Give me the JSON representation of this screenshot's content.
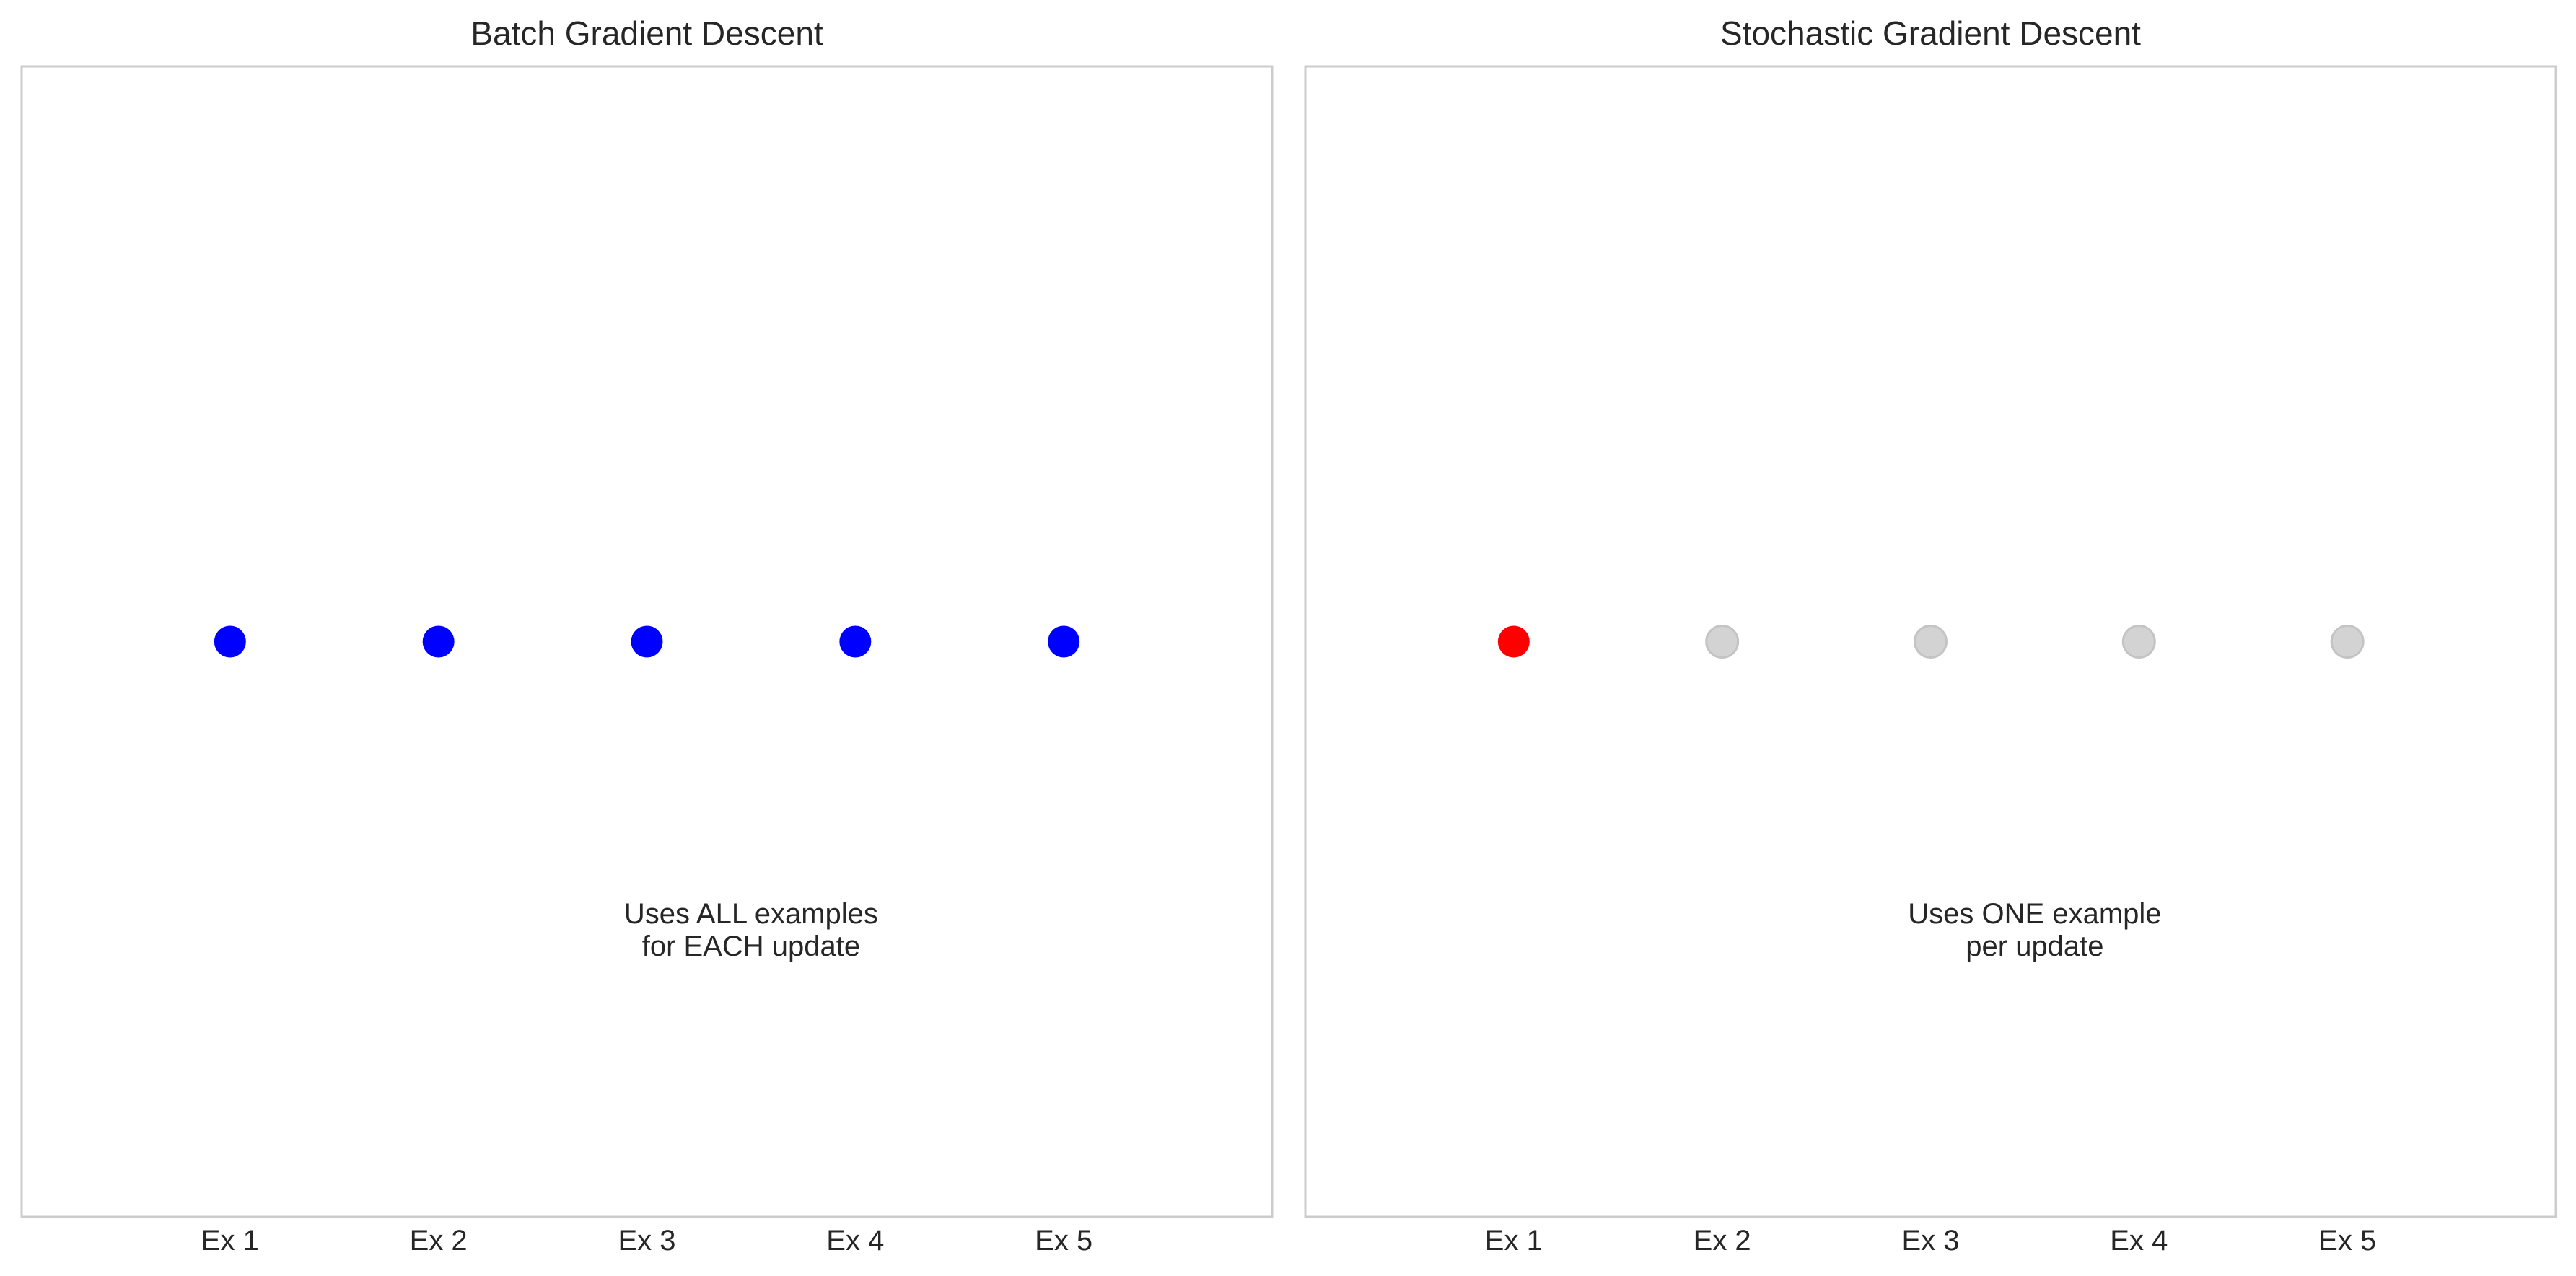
{
  "chart_data": [
    {
      "type": "scatter",
      "title": "Batch Gradient Descent",
      "categories": [
        "Ex 1",
        "Ex 2",
        "Ex 3",
        "Ex 4",
        "Ex 5"
      ],
      "x": [
        1,
        2,
        3,
        4,
        5
      ],
      "y": [
        1,
        1,
        1,
        1,
        1
      ],
      "xlim": [
        0,
        6
      ],
      "ylim": [
        0,
        2
      ],
      "point_colors": [
        "#0000ff",
        "#0000ff",
        "#0000ff",
        "#0000ff",
        "#0000ff"
      ],
      "annotation": {
        "lines": [
          "Uses ALL examples",
          "for EACH update"
        ],
        "x": 3.5,
        "y": 0.5
      },
      "grid": false,
      "xlabel": "",
      "ylabel": ""
    },
    {
      "type": "scatter",
      "title": "Stochastic Gradient Descent",
      "categories": [
        "Ex 1",
        "Ex 2",
        "Ex 3",
        "Ex 4",
        "Ex 5"
      ],
      "x": [
        1,
        2,
        3,
        4,
        5
      ],
      "y": [
        1,
        1,
        1,
        1,
        1
      ],
      "xlim": [
        0,
        6
      ],
      "ylim": [
        0,
        2
      ],
      "point_colors": [
        "#ff0000",
        "#d3d3d3",
        "#d3d3d3",
        "#d3d3d3",
        "#d3d3d3"
      ],
      "annotation": {
        "lines": [
          "Uses ONE example",
          "per update"
        ],
        "x": 3.5,
        "y": 0.5
      },
      "grid": false,
      "xlabel": "",
      "ylabel": ""
    }
  ]
}
